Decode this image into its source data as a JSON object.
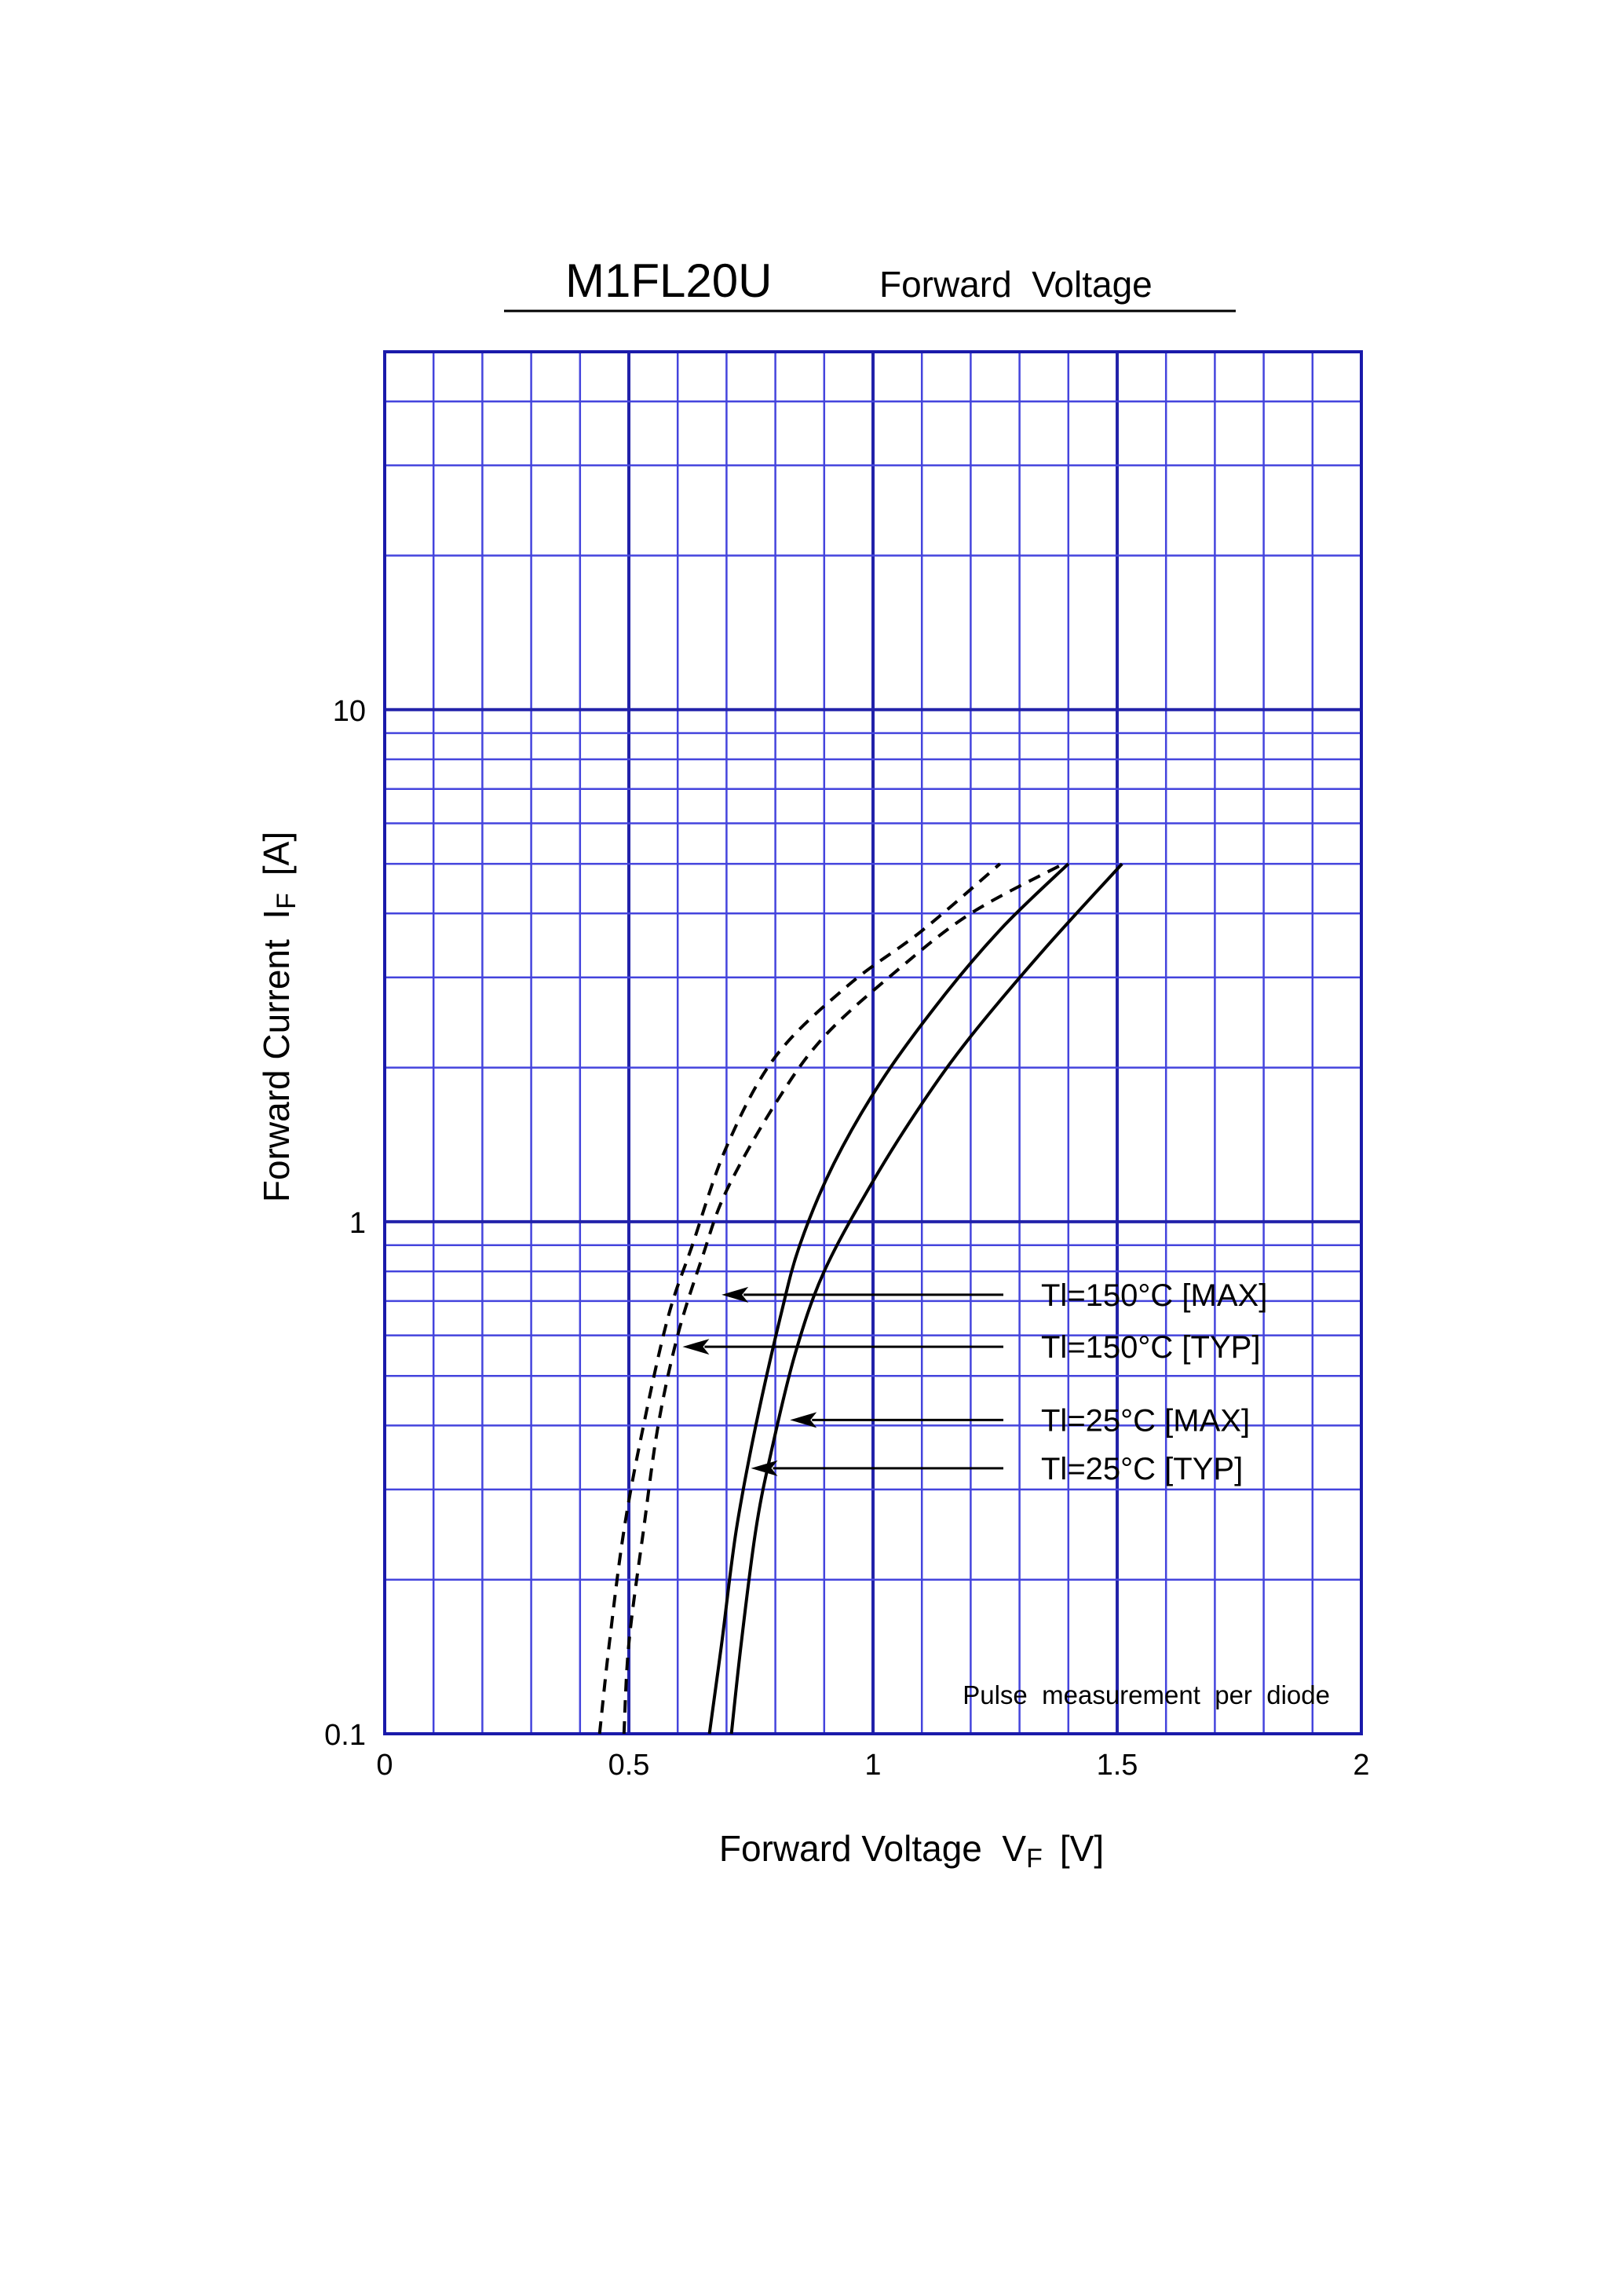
{
  "header": {
    "part_number": "M1FL20U",
    "subtitle": "Forward  Voltage"
  },
  "chart_data": {
    "type": "line",
    "xlabel": "Forward Voltage  V",
    "xlabel_sub": "F",
    "xlabel_unit": "[V]",
    "ylabel": "Forward Current  I",
    "ylabel_sub": "F",
    "ylabel_unit": "[A]",
    "xlim": [
      0,
      2
    ],
    "ylim": [
      0.1,
      50
    ],
    "yscale": "log",
    "x_ticks": [
      "0",
      "0.5",
      "1",
      "1.5",
      "2"
    ],
    "y_ticks": [
      "0.1",
      "1",
      "10"
    ],
    "grid": true,
    "note": "Pulse  measurement  per  diode",
    "series": [
      {
        "name": "Tl=150°C [MAX]",
        "style": "dashed",
        "points": [
          [
            0.49,
            0.1
          ],
          [
            0.5,
            0.15
          ],
          [
            0.53,
            0.25
          ],
          [
            0.56,
            0.4
          ],
          [
            0.6,
            0.6
          ],
          [
            0.65,
            0.85
          ],
          [
            0.7,
            1.15
          ],
          [
            0.8,
            1.7
          ],
          [
            0.9,
            2.3
          ],
          [
            1.05,
            3.1
          ],
          [
            1.2,
            4.0
          ],
          [
            1.39,
            5.0
          ]
        ]
      },
      {
        "name": "Tl=150°C [TYP]",
        "style": "dashed",
        "points": [
          [
            0.44,
            0.1
          ],
          [
            0.46,
            0.15
          ],
          [
            0.49,
            0.25
          ],
          [
            0.53,
            0.4
          ],
          [
            0.58,
            0.65
          ],
          [
            0.63,
            0.9
          ],
          [
            0.7,
            1.4
          ],
          [
            0.8,
            2.1
          ],
          [
            0.95,
            2.9
          ],
          [
            1.1,
            3.7
          ],
          [
            1.26,
            5.0
          ]
        ]
      },
      {
        "name": "Tl=25°C [MAX]",
        "style": "solid",
        "points": [
          [
            0.71,
            0.1
          ],
          [
            0.73,
            0.15
          ],
          [
            0.76,
            0.25
          ],
          [
            0.79,
            0.35
          ],
          [
            0.84,
            0.55
          ],
          [
            0.9,
            0.8
          ],
          [
            1.0,
            1.2
          ],
          [
            1.1,
            1.7
          ],
          [
            1.2,
            2.3
          ],
          [
            1.35,
            3.4
          ],
          [
            1.51,
            5.0
          ]
        ]
      },
      {
        "name": "Tl=25°C [TYP]",
        "style": "solid",
        "points": [
          [
            0.665,
            0.1
          ],
          [
            0.69,
            0.15
          ],
          [
            0.72,
            0.25
          ],
          [
            0.76,
            0.4
          ],
          [
            0.81,
            0.65
          ],
          [
            0.85,
            0.9
          ],
          [
            0.92,
            1.3
          ],
          [
            1.02,
            1.9
          ],
          [
            1.15,
            2.8
          ],
          [
            1.27,
            3.8
          ],
          [
            1.4,
            5.0
          ]
        ]
      }
    ],
    "annotations": [
      {
        "label": "Tl=150°C [MAX]",
        "target": [
          0.69,
          0.72
        ]
      },
      {
        "label": "Tl=150°C [TYP]",
        "target": [
          0.61,
          0.57
        ]
      },
      {
        "label": "Tl=25°C [MAX]",
        "target": [
          0.83,
          0.41
        ]
      },
      {
        "label": "Tl=25°C [TYP]",
        "target": [
          0.75,
          0.33
        ]
      }
    ],
    "colors": {
      "grid": "#4444dd",
      "grid_major": "#2222aa",
      "frame": "#1a1aaa",
      "curve": "#000000"
    }
  }
}
